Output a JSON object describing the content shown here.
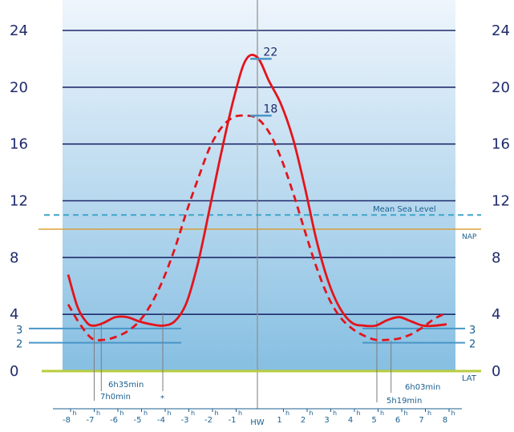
{
  "chart_data": {
    "type": "line",
    "title": "",
    "xlabel": "",
    "ylabel": "",
    "y_ticks": [
      "0",
      "4",
      "8",
      "12",
      "16",
      "20",
      "24"
    ],
    "x_ticks": [
      {
        "label": "-8",
        "sup": "h"
      },
      {
        "label": "-7",
        "sup": "h"
      },
      {
        "label": "-6",
        "sup": "h"
      },
      {
        "label": "-5",
        "sup": "h"
      },
      {
        "label": "-4",
        "sup": "h"
      },
      {
        "label": "-3",
        "sup": "h"
      },
      {
        "label": "-2",
        "sup": "h"
      },
      {
        "label": "-1",
        "sup": "h"
      },
      {
        "label": "HW",
        "sup": ""
      },
      {
        "label": "1",
        "sup": "h"
      },
      {
        "label": "2",
        "sup": "h"
      },
      {
        "label": "3",
        "sup": "h"
      },
      {
        "label": "4",
        "sup": "h"
      },
      {
        "label": "5",
        "sup": "h"
      },
      {
        "label": "6",
        "sup": "h"
      },
      {
        "label": "7",
        "sup": "h"
      },
      {
        "label": "8",
        "sup": "h"
      }
    ],
    "xlim": [
      -8,
      8
    ],
    "ylim": [
      0,
      24
    ],
    "grid": true,
    "series": [
      {
        "style": "solid",
        "color": "#e3141b",
        "x": [
          -8,
          -7.6,
          -7.2,
          -6.9,
          -6.5,
          -6.0,
          -5.5,
          -5.0,
          -4.5,
          -4.0,
          -3.5,
          -3.0,
          -2.5,
          -2.0,
          -1.5,
          -1.0,
          -0.5,
          0,
          0.5,
          1.0,
          1.5,
          2.0,
          2.5,
          3.0,
          3.5,
          4.0,
          4.5,
          5.0,
          5.5,
          6.0,
          6.5,
          7.0,
          7.5,
          8.0
        ],
        "y": [
          6.8,
          4.5,
          3.4,
          3.2,
          3.4,
          3.8,
          3.8,
          3.5,
          3.3,
          3.2,
          3.5,
          4.8,
          7.7,
          11.6,
          15.6,
          19.2,
          21.9,
          22.1,
          20.4,
          18.8,
          16.4,
          13.0,
          9.2,
          6.3,
          4.4,
          3.4,
          3.2,
          3.2,
          3.6,
          3.8,
          3.5,
          3.2,
          3.2,
          3.3
        ]
      },
      {
        "style": "dashed",
        "color": "#e3141b",
        "x": [
          -8,
          -7.5,
          -7.0,
          -6.5,
          -6.0,
          -5.5,
          -5.0,
          -4.5,
          -4.0,
          -3.5,
          -3.0,
          -2.5,
          -2.0,
          -1.5,
          -1.0,
          -0.5,
          0,
          0.5,
          1.0,
          1.5,
          2.0,
          2.5,
          3.0,
          3.5,
          4.0,
          4.5,
          5.0,
          5.5,
          6.0,
          6.5,
          7.0,
          7.5,
          8.0
        ],
        "y": [
          4.7,
          3.3,
          2.3,
          2.2,
          2.4,
          2.8,
          3.5,
          4.7,
          6.4,
          8.6,
          11.2,
          13.6,
          15.8,
          17.2,
          17.9,
          18.0,
          17.8,
          16.8,
          15.0,
          12.6,
          9.9,
          7.3,
          5.2,
          3.8,
          3.0,
          2.5,
          2.2,
          2.2,
          2.3,
          2.6,
          3.1,
          3.7,
          4.1
        ]
      }
    ],
    "peaks": [
      {
        "value": "22",
        "y": 22,
        "x1": -0.3,
        "x2": 0.6
      },
      {
        "value": "18",
        "y": 18,
        "x1": -0.3,
        "x2": 0.6
      }
    ],
    "reference_lines": [
      {
        "label": "Mean Sea Level",
        "y": 11.0,
        "style": "dashed",
        "color": "#3da6c8"
      },
      {
        "label": "NAP",
        "y": 10.0,
        "style": "solid",
        "color": "#d99a2b"
      },
      {
        "label": "LAT",
        "y": 0,
        "style": "solid",
        "color": "#b8cc3d"
      }
    ],
    "side_levels": [
      {
        "label": "3",
        "y": 3.0
      },
      {
        "label": "2",
        "y": 2.0
      }
    ],
    "annotations": [
      {
        "text": "6h35min",
        "x": -6.6
      },
      {
        "text": "7h0min",
        "x": -6.9
      },
      {
        "text": "*",
        "x": -4.0
      },
      {
        "text": "6h03min",
        "x": 5.65
      },
      {
        "text": "5h19min",
        "x": 5.05
      }
    ]
  }
}
